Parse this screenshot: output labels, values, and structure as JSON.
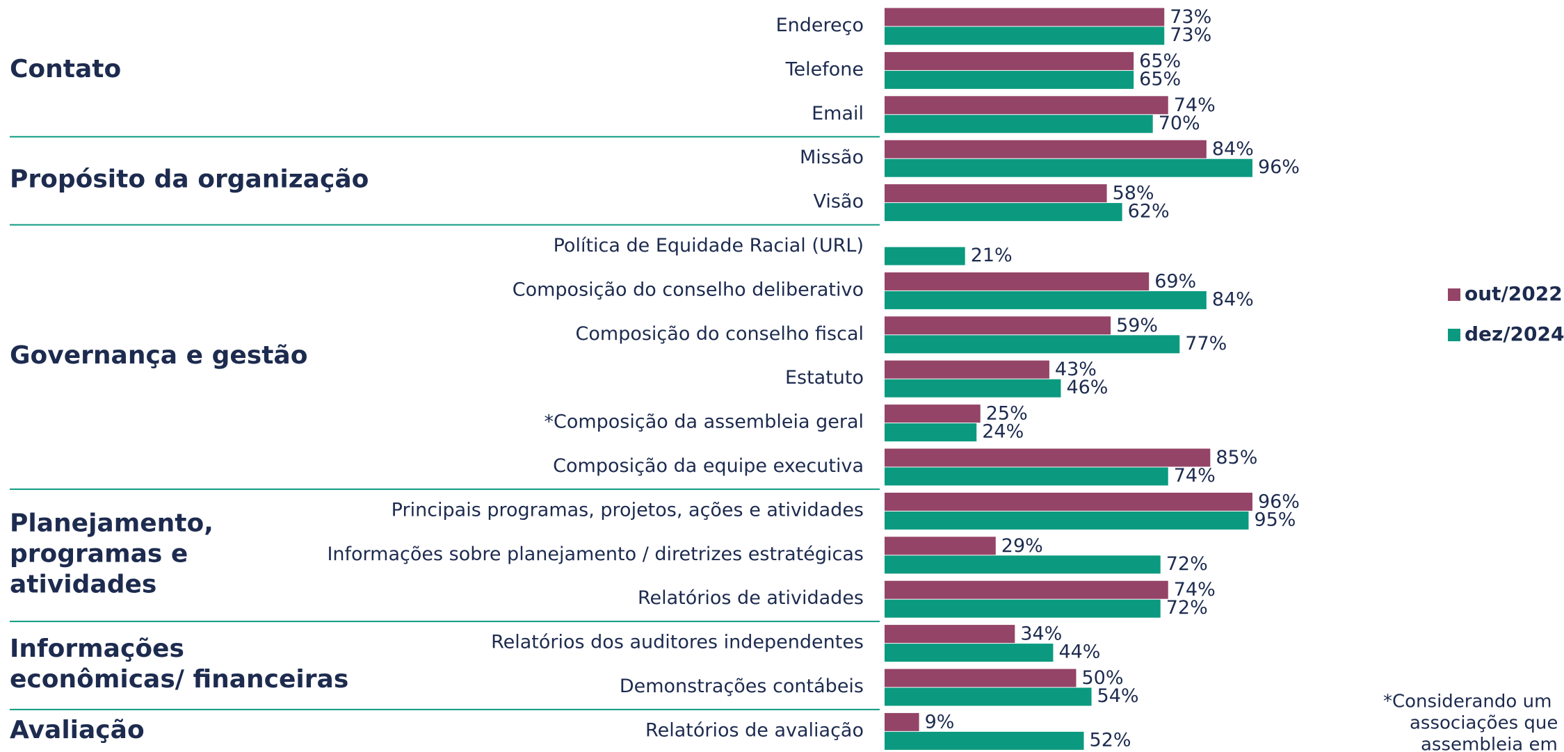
{
  "chart_data": {
    "type": "grouped-hbar",
    "groups": [
      {
        "label": [
          "Contato"
        ],
        "categories": [
          "Endereço",
          "Telefone",
          "Email"
        ]
      },
      {
        "label": [
          "Propósito da organização"
        ],
        "categories": [
          "Missão",
          "Visão"
        ]
      },
      {
        "label": [
          "Governança e gestão"
        ],
        "categories": [
          "Política de Equidade Racial (URL)",
          "Composição do conselho deliberativo",
          "Composição do conselho fiscal",
          "Estatuto",
          "*Composição da assembleia geral",
          "Composição da equipe executiva"
        ]
      },
      {
        "label": [
          "Planejamento,",
          "programas e",
          "atividades"
        ],
        "categories": [
          "Principais programas, projetos, ações e atividades",
          "Informações sobre planejamento / diretrizes estratégicas",
          "Relatórios de atividades"
        ]
      },
      {
        "label": [
          "Informações",
          "econômicas/ financeiras"
        ],
        "categories": [
          "Relatórios dos auditores independentes",
          "Demonstrações contábeis"
        ]
      },
      {
        "label": [
          "Avaliação"
        ],
        "categories": [
          "Relatórios de avaliação"
        ]
      }
    ],
    "series": [
      {
        "name": "out/2022",
        "color": "#944466",
        "values": [
          73,
          65,
          74,
          84,
          58,
          null,
          69,
          59,
          43,
          25,
          85,
          96,
          29,
          74,
          34,
          50,
          9
        ],
        "value_labels": [
          "73%",
          "65%",
          "74%",
          "84%",
          "58%",
          null,
          "69%",
          "59%",
          "43%",
          "25%",
          "85%",
          "96%",
          "29%",
          "74%",
          "34%",
          "50%",
          "9%"
        ]
      },
      {
        "name": "dez/2024",
        "color": "#0b9a7f",
        "values": [
          73,
          65,
          70,
          96,
          62,
          21,
          84,
          77,
          46,
          24,
          74,
          95,
          72,
          72,
          44,
          54,
          52
        ],
        "value_labels": [
          "73%",
          "65%",
          "70%",
          "96%",
          "62%",
          "21%",
          "84%",
          "77%",
          "46%",
          "24%",
          "74%",
          "95%",
          "72%",
          "72%",
          "44%",
          "54%",
          "52%"
        ]
      }
    ],
    "footnote": [
      "*Considerando um",
      "associações que",
      "assembleia em"
    ]
  }
}
